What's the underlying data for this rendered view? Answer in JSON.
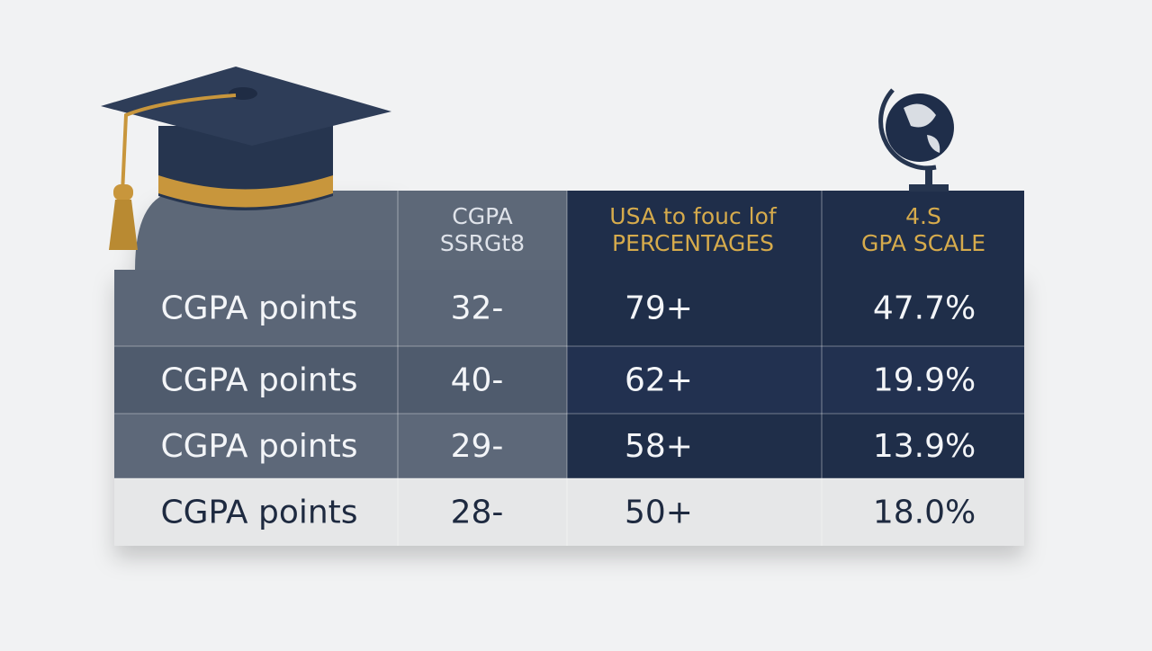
{
  "table": {
    "header": [
      [
        "CGPA",
        "SSRGt8"
      ],
      [
        "USA to fouc lof",
        "PERCENTAGES"
      ],
      [
        "4.S",
        "GPA SCALE"
      ]
    ],
    "rows": [
      [
        "CGPA points",
        "32-",
        "79+",
        "47.7%"
      ],
      [
        "CGPA points",
        "40-",
        "62+",
        "19.9%"
      ],
      [
        "CGPA points",
        "29-",
        "58+",
        "13.9%"
      ],
      [
        "CGPA points",
        "28-",
        "50+",
        "18.0%"
      ]
    ]
  }
}
